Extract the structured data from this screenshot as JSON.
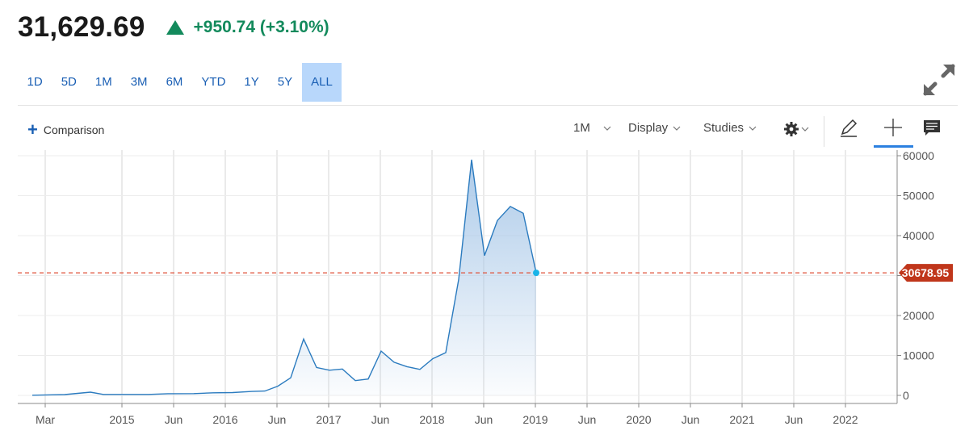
{
  "quote": {
    "price": "31,629.69",
    "change": "+950.74 (+3.10%)",
    "direction": "up",
    "color": "#138a5c"
  },
  "ranges": [
    {
      "label": "1D",
      "active": false
    },
    {
      "label": "5D",
      "active": false
    },
    {
      "label": "1M",
      "active": false
    },
    {
      "label": "3M",
      "active": false
    },
    {
      "label": "6M",
      "active": false
    },
    {
      "label": "YTD",
      "active": false
    },
    {
      "label": "1Y",
      "active": false
    },
    {
      "label": "5Y",
      "active": false
    },
    {
      "label": "ALL",
      "active": true
    }
  ],
  "toolbar": {
    "comparison": "Comparison",
    "interval": "1M",
    "display": "Display",
    "studies": "Studies"
  },
  "icons": {
    "expand": "expand-arrows-icon",
    "settings": "gear-icon",
    "draw": "pencil-icon",
    "crosshair": "crosshair-icon",
    "comment": "comment-icon"
  },
  "chart_data": {
    "type": "area",
    "x_ticks": [
      "Mar",
      "2015",
      "Jun",
      "2016",
      "Jun",
      "2017",
      "Jun",
      "2018",
      "Jun",
      "2019",
      "Jun",
      "2020",
      "Jun",
      "2021",
      "Jun",
      "2022"
    ],
    "y_ticks": [
      "60000",
      "50000",
      "40000",
      "",
      "20000",
      "10000",
      "0"
    ],
    "ylim": [
      -2000,
      61000
    ],
    "last_value_label": "30678.95",
    "last_value": 30678.95,
    "line_color": "#2b7bbf",
    "fill_color": "#a9c8e8",
    "reference_line_color": "#e0523a",
    "marker_color": "#1ab4e8",
    "label_bg": "#c0361b",
    "grid": true,
    "series": [
      {
        "values": [
          [
            "2014-03",
            50
          ],
          [
            "2014-06",
            150
          ],
          [
            "2014-08",
            200
          ],
          [
            "2014-12",
            800
          ],
          [
            "2015-02",
            250
          ],
          [
            "2015-06",
            250
          ],
          [
            "2015-09",
            250
          ],
          [
            "2015-12",
            430
          ],
          [
            "2016-04",
            450
          ],
          [
            "2016-07",
            650
          ],
          [
            "2016-10",
            700
          ],
          [
            "2017-01",
            1000
          ],
          [
            "2017-03",
            1100
          ],
          [
            "2017-05",
            2300
          ],
          [
            "2017-07",
            4400
          ],
          [
            "2017-09",
            14100
          ],
          [
            "2017-11",
            7000
          ],
          [
            "2018-01",
            6300
          ],
          [
            "2018-03",
            6600
          ],
          [
            "2018-05",
            3700
          ],
          [
            "2018-07",
            4100
          ],
          [
            "2018-09",
            11100
          ],
          [
            "2018-11",
            8300
          ],
          [
            "2019-01",
            7200
          ],
          [
            "2019-03",
            6500
          ],
          [
            "2019-05",
            9200
          ],
          [
            "2019-07",
            10700
          ],
          [
            "2019-09",
            29000
          ],
          [
            "2019-11",
            59000
          ],
          [
            "2020-01",
            35000
          ],
          [
            "2020-03",
            43800
          ],
          [
            "2020-05",
            47300
          ],
          [
            "2020-07",
            45600
          ],
          [
            "2020-09",
            30678.95
          ]
        ]
      }
    ]
  }
}
